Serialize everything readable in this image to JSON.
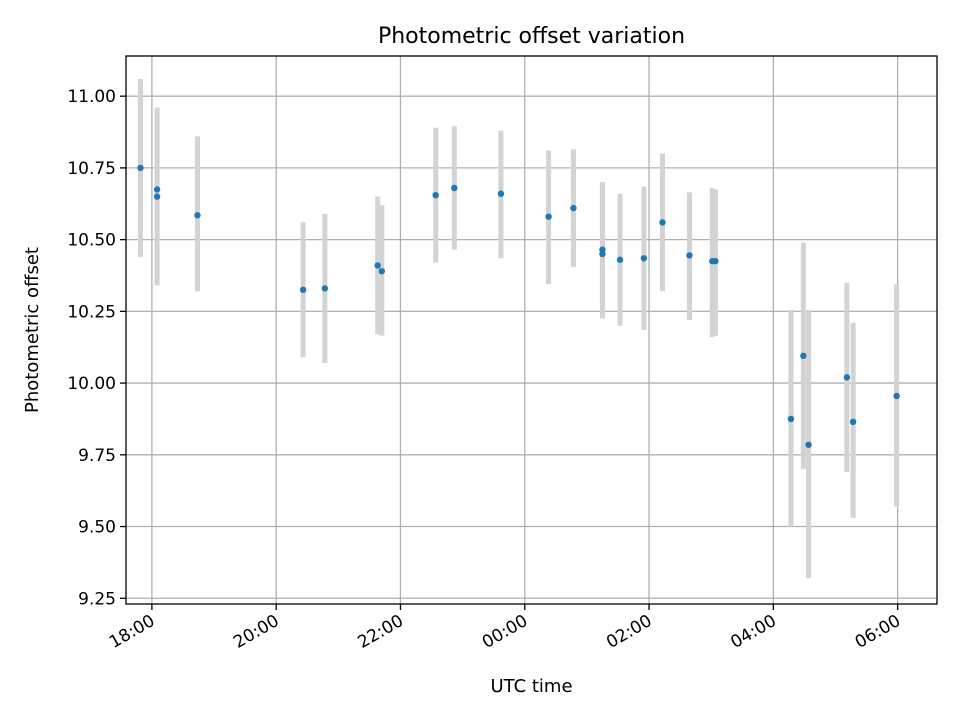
{
  "chart_data": {
    "type": "scatter",
    "title": "Photometric offset variation",
    "xlabel": "UTC time",
    "ylabel": "Photometric offset",
    "x_is_time": true,
    "xlim": [
      "17:35",
      "06:38"
    ],
    "ylim": [
      9.23,
      11.14
    ],
    "xticks": [
      "18:00",
      "20:00",
      "22:00",
      "00:00",
      "02:00",
      "04:00",
      "06:00"
    ],
    "yticks": [
      9.25,
      9.5,
      9.75,
      10.0,
      10.25,
      10.5,
      10.75,
      11.0
    ],
    "ytick_labels": [
      "9.25",
      "9.50",
      "9.75",
      "10.00",
      "10.25",
      "10.50",
      "10.75",
      "11.00"
    ],
    "grid": true,
    "marker_color": "#1f77b4",
    "errorbar_color": "#d3d3d3",
    "series": [
      {
        "points": [
          {
            "x": "17:49",
            "y": 10.75,
            "yerr_low": 10.44,
            "yerr_high": 11.06
          },
          {
            "x": "18:05",
            "y": 10.675,
            "yerr_low": 10.34,
            "yerr_high": 10.96
          },
          {
            "x": "18:05",
            "y": 10.65,
            "yerr_low": 10.34,
            "yerr_high": 10.96
          },
          {
            "x": "18:44",
            "y": 10.585,
            "yerr_low": 10.32,
            "yerr_high": 10.86
          },
          {
            "x": "20:26",
            "y": 10.325,
            "yerr_low": 10.09,
            "yerr_high": 10.56
          },
          {
            "x": "20:47",
            "y": 10.33,
            "yerr_low": 10.07,
            "yerr_high": 10.59
          },
          {
            "x": "21:38",
            "y": 10.41,
            "yerr_low": 10.17,
            "yerr_high": 10.65
          },
          {
            "x": "21:42",
            "y": 10.39,
            "yerr_low": 10.165,
            "yerr_high": 10.62
          },
          {
            "x": "22:34",
            "y": 10.655,
            "yerr_low": 10.42,
            "yerr_high": 10.89
          },
          {
            "x": "22:52",
            "y": 10.68,
            "yerr_low": 10.465,
            "yerr_high": 10.895
          },
          {
            "x": "23:37",
            "y": 10.66,
            "yerr_low": 10.435,
            "yerr_high": 10.88
          },
          {
            "x": "00:23",
            "y": 10.58,
            "yerr_low": 10.345,
            "yerr_high": 10.81
          },
          {
            "x": "00:47",
            "y": 10.61,
            "yerr_low": 10.405,
            "yerr_high": 10.815
          },
          {
            "x": "01:15",
            "y": 10.465,
            "yerr_low": 10.225,
            "yerr_high": 10.7
          },
          {
            "x": "01:15",
            "y": 10.45,
            "yerr_low": 10.225,
            "yerr_high": 10.7
          },
          {
            "x": "01:32",
            "y": 10.43,
            "yerr_low": 10.2,
            "yerr_high": 10.66
          },
          {
            "x": "01:55",
            "y": 10.435,
            "yerr_low": 10.185,
            "yerr_high": 10.685
          },
          {
            "x": "02:13",
            "y": 10.56,
            "yerr_low": 10.32,
            "yerr_high": 10.8
          },
          {
            "x": "02:39",
            "y": 10.445,
            "yerr_low": 10.22,
            "yerr_high": 10.665
          },
          {
            "x": "03:01",
            "y": 10.425,
            "yerr_low": 10.16,
            "yerr_high": 10.68
          },
          {
            "x": "03:04",
            "y": 10.425,
            "yerr_low": 10.165,
            "yerr_high": 10.675
          },
          {
            "x": "04:17",
            "y": 9.875,
            "yerr_low": 9.5,
            "yerr_high": 10.255
          },
          {
            "x": "04:29",
            "y": 10.095,
            "yerr_low": 9.7,
            "yerr_high": 10.49
          },
          {
            "x": "04:34",
            "y": 9.785,
            "yerr_low": 9.32,
            "yerr_high": 10.255
          },
          {
            "x": "05:11",
            "y": 10.02,
            "yerr_low": 9.69,
            "yerr_high": 10.35
          },
          {
            "x": "05:17",
            "y": 9.865,
            "yerr_low": 9.53,
            "yerr_high": 10.21
          },
          {
            "x": "05:59",
            "y": 9.955,
            "yerr_low": 9.57,
            "yerr_high": 10.345
          }
        ]
      }
    ]
  }
}
